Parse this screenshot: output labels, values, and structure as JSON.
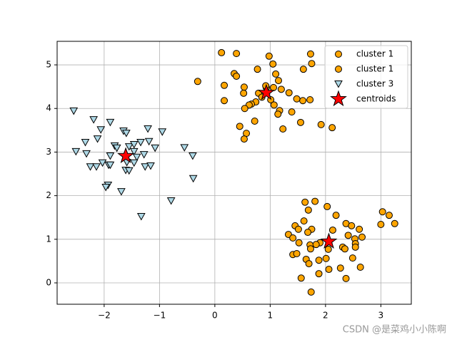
{
  "chart_data": {
    "type": "scatter",
    "xlim": [
      -2.85,
      3.55
    ],
    "ylim": [
      -0.49,
      5.54
    ],
    "xticks": [
      {
        "value": -2,
        "label": "−2"
      },
      {
        "value": -1,
        "label": "−1"
      },
      0,
      1,
      2,
      3
    ],
    "yticks": [
      0,
      1,
      2,
      3,
      4,
      5
    ],
    "grid": true,
    "legend": "upper right",
    "series": [
      {
        "name": "cluster 1",
        "color": "#ffa500",
        "marker": "circle",
        "x": [
          0.12,
          0.39,
          1.73,
          0.98,
          1.05,
          1.75,
          1.6,
          0.77,
          -0.31,
          0.35,
          0.39,
          1.1,
          1.15,
          0.17,
          0.53,
          0.93,
          1.06,
          1.2,
          0.52,
          0.79,
          1.34,
          1.01,
          0.17,
          1.59,
          1.72,
          1.48,
          0.74,
          0.66,
          0.62,
          1.07,
          0.54,
          1.17,
          1.14,
          1.39,
          1.55,
          0.72,
          0.45,
          1.92,
          2.12,
          1.23,
          0.57,
          0.53,
          0.92,
          0.85
        ],
        "y": [
          5.28,
          5.26,
          5.25,
          5.2,
          5.02,
          5.03,
          4.9,
          4.9,
          4.62,
          4.8,
          4.74,
          4.79,
          4.64,
          4.53,
          4.49,
          4.48,
          4.48,
          4.44,
          4.35,
          4.35,
          4.36,
          4.2,
          4.18,
          4.18,
          4.2,
          4.22,
          4.15,
          4.1,
          4.08,
          4.08,
          4.0,
          3.95,
          3.87,
          3.92,
          3.68,
          3.71,
          3.59,
          3.63,
          3.56,
          3.53,
          3.43,
          3.3,
          4.52,
          4.26
        ]
      },
      {
        "name": "cluster 1",
        "color": "#ffa500",
        "marker": "circle",
        "x": [
          3.03,
          3.15,
          3.25,
          3.0,
          1.63,
          1.81,
          2.03,
          1.69,
          2.19,
          1.61,
          2.37,
          2.47,
          1.45,
          1.75,
          1.51,
          2.13,
          2.61,
          1.68,
          1.33,
          2.41,
          2.66,
          2.53,
          1.41,
          1.52,
          1.9,
          1.72,
          1.83,
          2.54,
          2.31,
          2.54,
          2.35,
          2.05,
          1.73,
          1.41,
          1.48,
          1.88,
          1.65,
          2.01,
          2.49,
          1.7,
          2.27,
          2.06,
          2.63,
          1.88,
          1.56,
          2.37,
          1.74
        ],
        "y": [
          1.63,
          1.55,
          1.36,
          1.34,
          1.85,
          1.87,
          1.75,
          1.67,
          1.55,
          1.42,
          1.36,
          1.31,
          1.31,
          1.23,
          1.23,
          1.21,
          1.23,
          1.16,
          1.11,
          1.09,
          1.05,
          1.01,
          1.03,
          0.92,
          0.92,
          0.87,
          0.88,
          0.9,
          0.82,
          0.82,
          0.78,
          0.77,
          0.78,
          0.65,
          0.67,
          0.52,
          0.54,
          0.56,
          0.57,
          0.44,
          0.34,
          0.31,
          0.36,
          0.21,
          0.11,
          0.1,
          -0.21
        ]
      },
      {
        "name": "cluster 3",
        "color": "#add8e6",
        "marker": "triangle-down",
        "x": [
          -2.55,
          -2.51,
          -2.19,
          -1.89,
          -2.06,
          -2.34,
          -2.12,
          -2.32,
          -2.25,
          -2.14,
          -2.03,
          -1.92,
          -1.89,
          -1.81,
          -1.77,
          -1.65,
          -1.6,
          -1.21,
          -0.95,
          -1.55,
          -1.46,
          -1.34,
          -1.19,
          -1.46,
          -1.08,
          -0.55,
          -0.4,
          -1.28,
          -1.41,
          -1.59,
          -1.46,
          -1.26,
          -1.16,
          -1.61,
          -1.55,
          -1.89,
          -1.93,
          -1.97,
          -1.69,
          -0.39,
          -0.79,
          -1.33
        ],
        "y": [
          3.94,
          3.01,
          3.74,
          3.68,
          3.51,
          3.22,
          3.3,
          2.96,
          2.66,
          2.66,
          2.75,
          2.7,
          2.91,
          3.14,
          3.09,
          3.48,
          3.43,
          3.53,
          3.46,
          3.12,
          3.17,
          3.22,
          3.24,
          3.01,
          3.09,
          3.1,
          2.91,
          2.94,
          2.88,
          2.76,
          2.75,
          2.66,
          2.68,
          2.58,
          2.57,
          2.7,
          2.24,
          2.19,
          2.09,
          2.39,
          1.88,
          1.52
        ]
      },
      {
        "name": "centroids",
        "color": "#ff0000",
        "marker": "star",
        "x": [
          -1.61,
          0.93,
          2.06
        ],
        "y": [
          2.91,
          4.36,
          0.95
        ]
      }
    ]
  },
  "watermark": "CSDN @是菜鸡小小陈啊"
}
